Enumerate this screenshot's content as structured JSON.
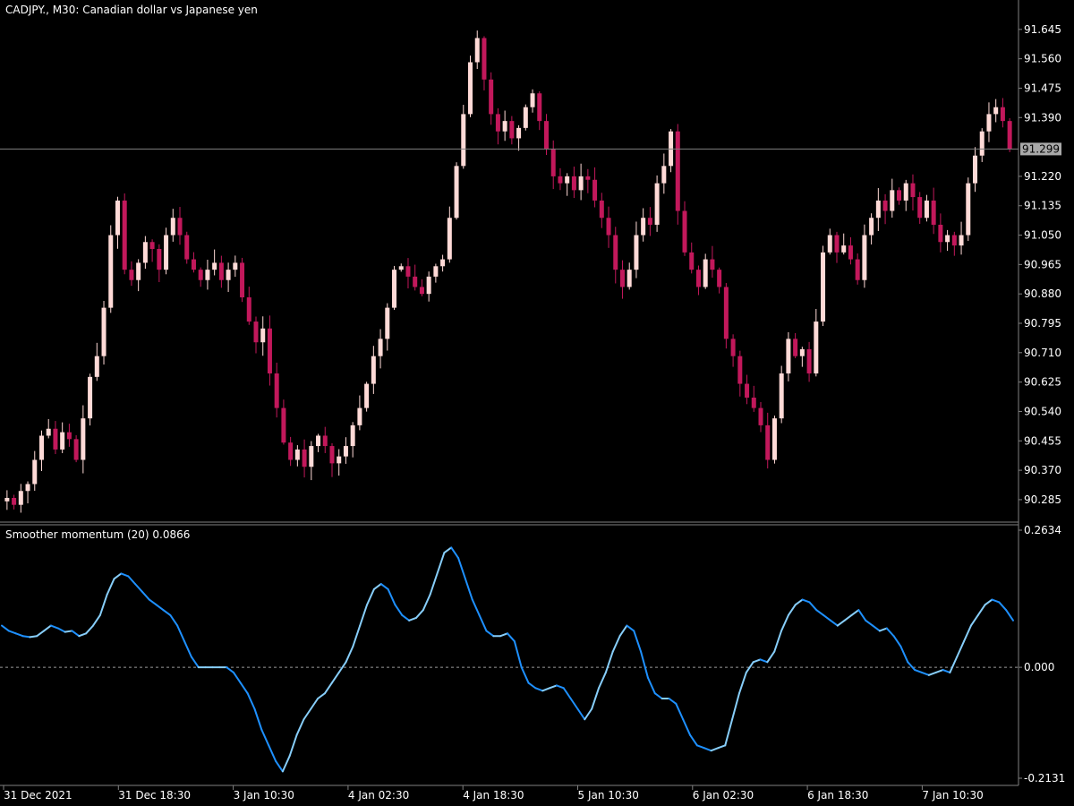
{
  "main_pane": {
    "symbol": "CADJPY.",
    "timeframe": "M30",
    "description": "Canadian dollar vs Japanese yen",
    "price_ticks": [
      "91.645",
      "91.560",
      "91.475",
      "91.390",
      "91.299",
      "91.220",
      "91.135",
      "91.050",
      "90.965",
      "90.880",
      "90.795",
      "90.710",
      "90.625",
      "90.540",
      "90.455",
      "90.370",
      "90.285"
    ],
    "current_price": "91.299",
    "price_range": [
      90.22,
      91.73
    ]
  },
  "indicator_pane": {
    "name": "Smoother momentum (20)",
    "value": "0.0866",
    "ticks": [
      "0.2634",
      "0.000",
      "-0.2131"
    ],
    "range": [
      -0.2131,
      0.2634
    ]
  },
  "time_axis": {
    "labels": [
      "31 Dec 2021",
      "31 Dec 18:30",
      "3 Jan 10:30",
      "4 Jan 02:30",
      "4 Jan 18:30",
      "5 Jan 10:30",
      "6 Jan 02:30",
      "6 Jan 18:30",
      "7 Jan 10:30"
    ]
  },
  "colors": {
    "background": "#000000",
    "bull_candle": "#FFDAD7",
    "bear_candle": "#C2185B",
    "momentum_up": "#87CEFA",
    "momentum_down": "#1E90FF",
    "grid_line": "#808080",
    "current_price_bg": "#A9A9A9"
  },
  "chart_data": [
    {
      "type": "candlestick",
      "title": "CADJPY., M30: Canadian dollar vs Japanese yen",
      "ylim": [
        90.22,
        91.73
      ],
      "price_path": [
        90.29,
        90.27,
        90.31,
        90.33,
        90.4,
        90.47,
        90.49,
        90.43,
        90.48,
        90.46,
        90.4,
        90.52,
        90.64,
        90.7,
        90.84,
        91.05,
        91.15,
        90.95,
        90.92,
        90.97,
        91.03,
        91.01,
        90.95,
        91.05,
        91.1,
        91.05,
        90.98,
        90.95,
        90.92,
        90.95,
        90.97,
        90.92,
        90.95,
        90.97,
        90.87,
        90.8,
        90.74,
        90.78,
        90.65,
        90.55,
        90.45,
        90.4,
        90.43,
        90.38,
        90.44,
        90.47,
        90.44,
        90.39,
        90.41,
        90.44,
        90.5,
        90.55,
        90.62,
        90.7,
        90.75,
        90.84,
        90.95,
        90.96,
        90.93,
        90.9,
        90.88,
        90.93,
        90.96,
        90.98,
        91.1,
        91.25,
        91.4,
        91.55,
        91.62,
        91.5,
        91.4,
        91.35,
        91.38,
        91.33,
        91.36,
        91.42,
        91.46,
        91.38,
        91.3,
        91.22,
        91.2,
        91.22,
        91.18,
        91.22,
        91.21,
        91.15,
        91.1,
        91.05,
        90.95,
        90.9,
        90.95,
        91.05,
        91.1,
        91.08,
        91.2,
        91.25,
        91.35,
        91.12,
        91.0,
        90.95,
        90.9,
        90.98,
        90.95,
        90.9,
        90.75,
        90.7,
        90.62,
        90.58,
        90.55,
        90.5,
        90.4,
        90.52,
        90.65,
        90.75,
        90.7,
        90.72,
        90.65,
        90.8,
        91.0,
        91.05,
        91.0,
        91.02,
        90.98,
        90.92,
        91.05,
        91.1,
        91.15,
        91.12,
        91.18,
        91.15,
        91.2,
        91.16,
        91.1,
        91.15,
        91.08,
        91.03,
        91.05,
        91.02,
        91.05,
        91.2,
        91.28,
        91.35,
        91.4,
        91.42,
        91.38,
        91.3
      ]
    },
    {
      "type": "line",
      "title": "Smoother momentum (20)",
      "ylim": [
        -0.2131,
        0.2634
      ],
      "values": [
        0.08,
        0.07,
        0.065,
        0.06,
        0.058,
        0.06,
        0.07,
        0.08,
        0.075,
        0.068,
        0.07,
        0.06,
        0.065,
        0.08,
        0.1,
        0.14,
        0.17,
        0.18,
        0.175,
        0.16,
        0.145,
        0.13,
        0.12,
        0.11,
        0.1,
        0.08,
        0.05,
        0.02,
        0.0,
        0.0,
        0.0,
        0.0,
        0.0,
        -0.01,
        -0.03,
        -0.05,
        -0.08,
        -0.12,
        -0.15,
        -0.18,
        -0.2,
        -0.17,
        -0.13,
        -0.1,
        -0.08,
        -0.06,
        -0.05,
        -0.03,
        -0.01,
        0.01,
        0.04,
        0.08,
        0.12,
        0.15,
        0.16,
        0.15,
        0.12,
        0.1,
        0.09,
        0.095,
        0.11,
        0.14,
        0.18,
        0.22,
        0.23,
        0.21,
        0.17,
        0.13,
        0.1,
        0.07,
        0.06,
        0.06,
        0.065,
        0.05,
        0.0,
        -0.03,
        -0.04,
        -0.045,
        -0.04,
        -0.035,
        -0.04,
        -0.06,
        -0.08,
        -0.1,
        -0.08,
        -0.04,
        -0.01,
        0.03,
        0.06,
        0.08,
        0.07,
        0.03,
        -0.02,
        -0.05,
        -0.06,
        -0.06,
        -0.07,
        -0.1,
        -0.13,
        -0.15,
        -0.155,
        -0.16,
        -0.155,
        -0.15,
        -0.1,
        -0.05,
        -0.01,
        0.01,
        0.015,
        0.01,
        0.03,
        0.07,
        0.1,
        0.12,
        0.13,
        0.125,
        0.11,
        0.1,
        0.09,
        0.08,
        0.09,
        0.1,
        0.11,
        0.09,
        0.08,
        0.07,
        0.075,
        0.06,
        0.04,
        0.01,
        -0.005,
        -0.01,
        -0.015,
        -0.01,
        -0.005,
        -0.01,
        0.02,
        0.05,
        0.08,
        0.1,
        0.12,
        0.13,
        0.125,
        0.11,
        0.09
      ]
    }
  ]
}
